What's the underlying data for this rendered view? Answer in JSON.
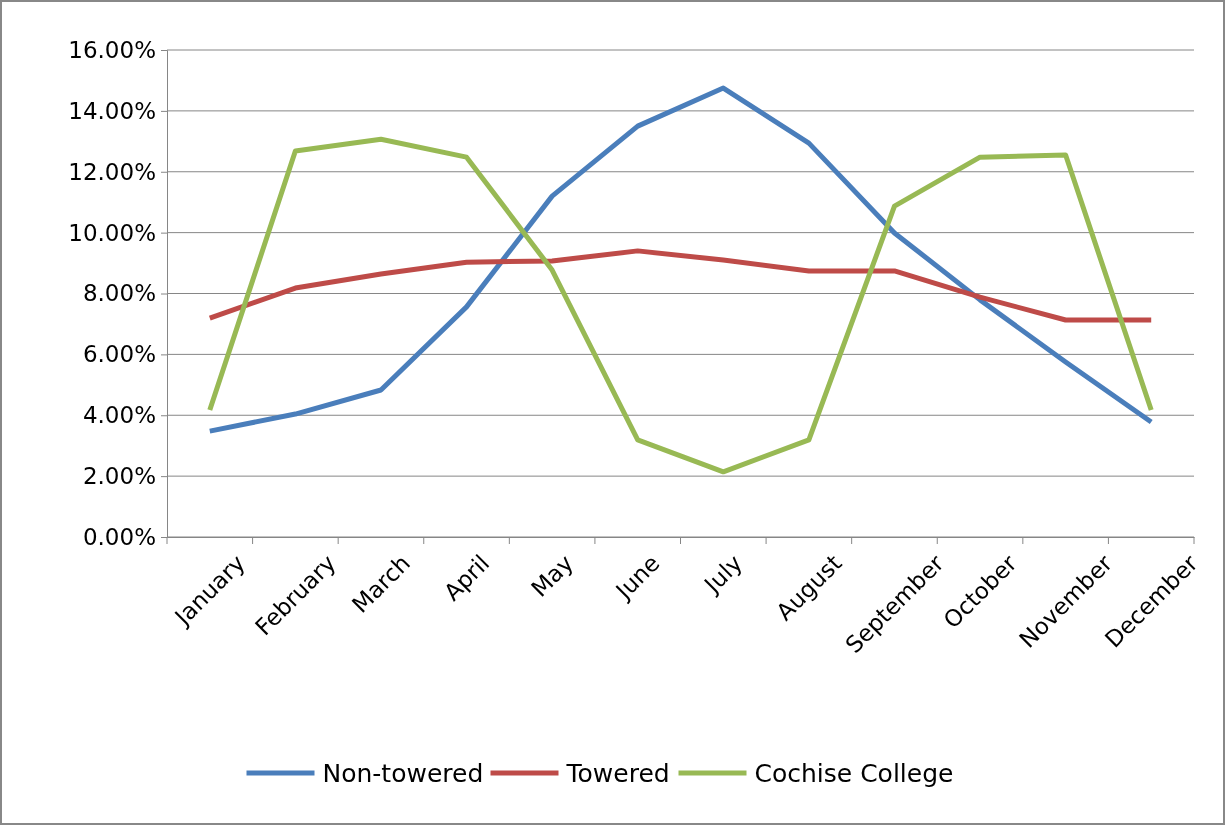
{
  "chart_data": {
    "type": "line",
    "categories": [
      "January",
      "February",
      "March",
      "April",
      "May",
      "June",
      "July",
      "August",
      "September",
      "October",
      "November",
      "December"
    ],
    "series": [
      {
        "name": "Non-towered",
        "color": "#4a7ebb",
        "values": [
          0.0348,
          0.0404,
          0.0483,
          0.0756,
          0.112,
          0.135,
          0.1475,
          0.1294,
          0.0999,
          0.0779,
          0.0575,
          0.0378
        ]
      },
      {
        "name": "Towered",
        "color": "#be4b48",
        "values": [
          0.0719,
          0.0818,
          0.0864,
          0.0903,
          0.0907,
          0.094,
          0.091,
          0.0874,
          0.0874,
          0.0788,
          0.0713,
          0.0713
        ]
      },
      {
        "name": "Cochise College",
        "color": "#98b954",
        "values": [
          0.0417,
          0.1268,
          0.1307,
          0.1248,
          0.0877,
          0.0319,
          0.0214,
          0.0319,
          0.1087,
          0.1248,
          0.1255,
          0.0417
        ]
      }
    ],
    "ylim": [
      0,
      0.16
    ],
    "yticks": [
      {
        "value": 0,
        "label": "0.00%"
      },
      {
        "value": 0.02,
        "label": "2.00%"
      },
      {
        "value": 0.04,
        "label": "4.00%"
      },
      {
        "value": 0.06,
        "label": "6.00%"
      },
      {
        "value": 0.08,
        "label": "8.00%"
      },
      {
        "value": 0.1,
        "label": "10.00%"
      },
      {
        "value": 0.12,
        "label": "12.00%"
      },
      {
        "value": 0.14,
        "label": "14.00%"
      },
      {
        "value": 0.16,
        "label": "16.00%"
      }
    ],
    "grid": "y",
    "legend": "bottom",
    "marker": "none",
    "line_style": "solid"
  }
}
